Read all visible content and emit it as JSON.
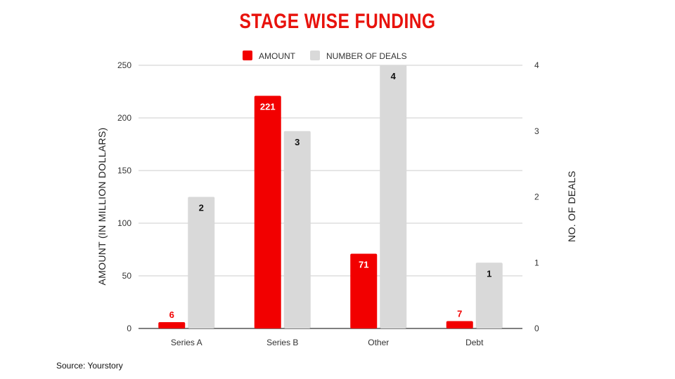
{
  "chart_data": {
    "type": "bar",
    "title": "STAGE WISE FUNDING",
    "categories": [
      "Series A",
      "Series B",
      "Other",
      "Debt"
    ],
    "series": [
      {
        "name": "AMOUNT",
        "axis": "left",
        "color": "#f20000",
        "values": [
          6,
          221,
          71,
          7
        ],
        "data_labels": [
          "6",
          "221",
          "71",
          "7"
        ]
      },
      {
        "name": "NUMBER OF DEALS",
        "axis": "right",
        "color": "#d9d9d9",
        "values": [
          2,
          3,
          4,
          1
        ],
        "data_labels": [
          "2",
          "3",
          "4",
          "1"
        ]
      }
    ],
    "ylabel": "AMOUNT (IN MILLION DOLLARS)",
    "y2label": "NO. OF DEALS",
    "ylim": [
      0,
      250
    ],
    "y2lim": [
      0,
      4
    ],
    "yticks": [
      "0",
      "50",
      "100",
      "150",
      "200",
      "250"
    ],
    "y2ticks": [
      "0",
      "1",
      "2",
      "3",
      "4"
    ],
    "grid": true,
    "legend_position": "top"
  },
  "source": "Source: Yourstory"
}
